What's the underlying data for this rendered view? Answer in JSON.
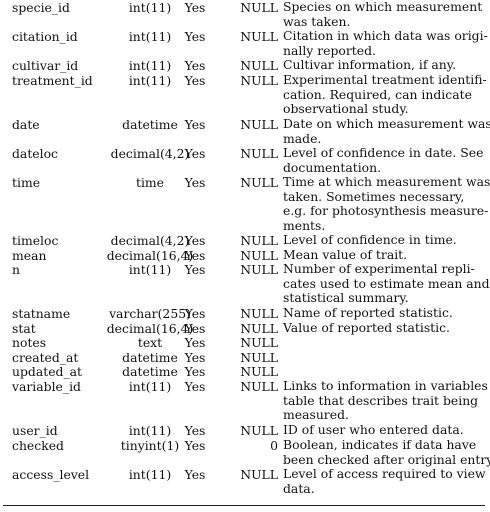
{
  "rows": [
    {
      "name": "specie_id",
      "type": "int(11)",
      "null": "Yes",
      "default": "NULL",
      "desc": [
        "Species on which measurement",
        "was taken."
      ]
    },
    {
      "name": "citation_id",
      "type": "int(11)",
      "null": "Yes",
      "default": "NULL",
      "desc": [
        "Citation in which data was origi-",
        "nally reported."
      ]
    },
    {
      "name": "cultivar_id",
      "type": "int(11)",
      "null": "Yes",
      "default": "NULL",
      "desc": [
        "Cultivar information, if any."
      ]
    },
    {
      "name": "treatment_id",
      "type": "int(11)",
      "null": "Yes",
      "default": "NULL",
      "desc": [
        "Experimental treatment identifi-",
        "cation.    Required, can indicate",
        "observational study."
      ]
    },
    {
      "name": "date",
      "type": "datetime",
      "null": "Yes",
      "default": "NULL",
      "desc": [
        "Date on which measurement was",
        "made."
      ]
    },
    {
      "name": "dateloc",
      "type": "decimal(4,2)",
      "null": "Yes",
      "default": "NULL",
      "desc": [
        "Level of confidence in date.  See",
        "documentation."
      ]
    },
    {
      "name": "time",
      "type": "time",
      "null": "Yes",
      "default": "NULL",
      "desc": [
        "Time at which measurement was",
        "taken.        Sometimes necessary,",
        "e.g. for photosynthesis measure-",
        "ments."
      ]
    },
    {
      "name": "timeloc",
      "type": "decimal(4,2)",
      "null": "Yes",
      "default": "NULL",
      "desc": [
        "Level of confidence in time."
      ]
    },
    {
      "name": "mean",
      "type": "decimal(16,4)",
      "null": "Yes",
      "default": "NULL",
      "desc": [
        "Mean value of trait."
      ]
    },
    {
      "name": "n",
      "type": "int(11)",
      "null": "Yes",
      "default": "NULL",
      "desc": [
        "Number of experimental repli-",
        "cates used to estimate mean and",
        "statistical summary."
      ]
    },
    {
      "name": "statname",
      "type": "varchar(255)",
      "null": "Yes",
      "default": "NULL",
      "desc": [
        "Name of reported statistic."
      ]
    },
    {
      "name": "stat",
      "type": "decimal(16,4)",
      "null": "Yes",
      "default": "NULL",
      "desc": [
        "Value of reported statistic."
      ]
    },
    {
      "name": "notes",
      "type": "text",
      "null": "Yes",
      "default": "NULL",
      "desc": []
    },
    {
      "name": "created_at",
      "type": "datetime",
      "null": "Yes",
      "default": "NULL",
      "desc": []
    },
    {
      "name": "updated_at",
      "type": "datetime",
      "null": "Yes",
      "default": "NULL",
      "desc": []
    },
    {
      "name": "variable_id",
      "type": "int(11)",
      "null": "Yes",
      "default": "NULL",
      "desc": [
        "Links to information in variables",
        "table that describes trait being",
        "measured."
      ]
    },
    {
      "name": "user_id",
      "type": "int(11)",
      "null": "Yes",
      "default": "NULL",
      "desc": [
        "ID of user who entered data."
      ]
    },
    {
      "name": "checked",
      "type": "tinyint(1)",
      "null": "Yes",
      "default": "0",
      "desc": [
        "Boolean, indicates if data have",
        "been checked after original entry."
      ]
    },
    {
      "name": "access_level",
      "type": "int(11)",
      "null": "Yes",
      "default": "NULL",
      "desc": [
        "Level of access required to view",
        "data."
      ]
    }
  ]
}
